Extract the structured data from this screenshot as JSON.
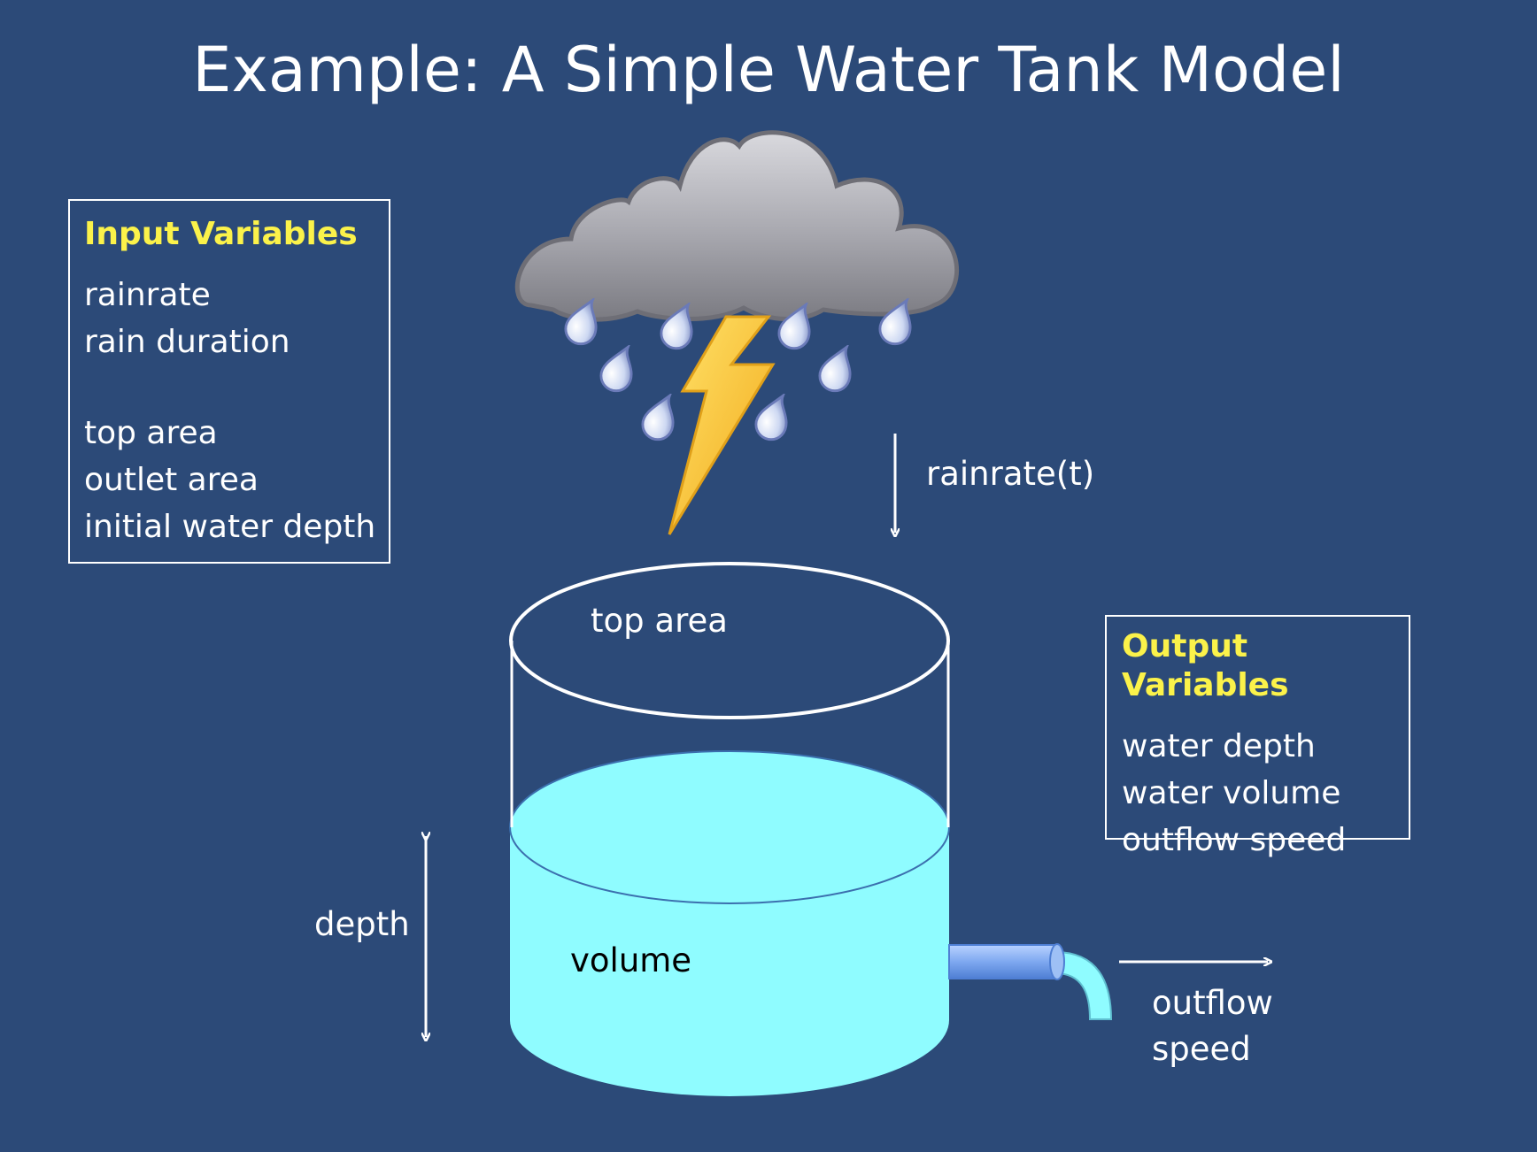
{
  "title": "Example:  A Simple Water Tank Model",
  "input_box": {
    "heading": "Input Variables",
    "items": [
      "rainrate",
      "rain duration",
      "top area",
      "outlet area",
      "initial water depth"
    ]
  },
  "output_box": {
    "heading": "Output Variables",
    "items": [
      "water depth",
      "water volume",
      "outflow speed"
    ]
  },
  "labels": {
    "rainrate": "rainrate(t)",
    "top_area": "top area",
    "volume": "volume",
    "depth": "depth",
    "outflow_line1": "outflow",
    "outflow_line2": "speed"
  },
  "colors": {
    "background": "#2c4a78",
    "heading": "#fbf24a",
    "water": "#8ffcff",
    "pipe": "#7ea8f0",
    "cloud": "#a8a8b0",
    "lightning": "#f7c12e",
    "raindrop": "#c9d6f2"
  },
  "icons": [
    "storm-cloud-icon",
    "lightning-bolt-icon",
    "raindrop-icon",
    "outlet-pipe-icon"
  ]
}
